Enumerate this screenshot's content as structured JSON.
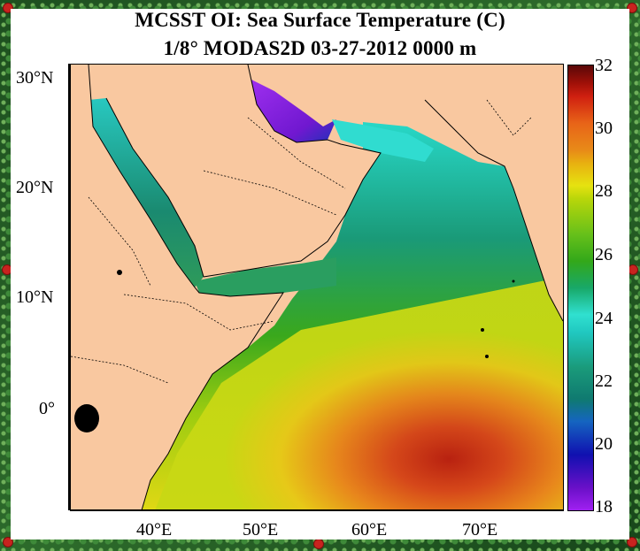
{
  "title": {
    "line1": "MCSST OI:  Sea Surface Temperature (C)",
    "line2": "1/8° MODAS2D 03-27-2012 0000 m"
  },
  "axes": {
    "lat_labels": [
      "30°N",
      "20°N",
      "10°N",
      "0°"
    ],
    "lon_labels": [
      "40°E",
      "50°E",
      "60°E",
      "70°E"
    ]
  },
  "colorbar": {
    "min": 18,
    "max": 32,
    "tick_labels": [
      "32",
      "30",
      "28",
      "26",
      "24",
      "22",
      "20",
      "18"
    ]
  },
  "colors": {
    "land": "#f9c8a0",
    "warm_equatorial": "#e06a18",
    "cool_gulf": "#7a18d8",
    "border_green": "#1f5a22"
  }
}
